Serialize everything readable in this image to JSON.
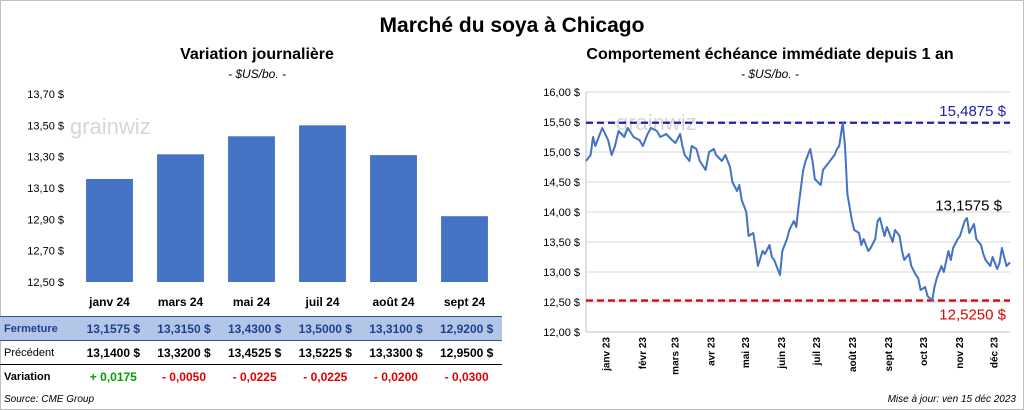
{
  "title": "Marché du soya à Chicago",
  "source": "Source: CME Group",
  "update": "Mise à jour: ven 15 déc 2023",
  "watermark": "grainwiz",
  "chart_data": [
    {
      "type": "bar",
      "title": "Variation  journalière",
      "subtitle": "- $US/bo. -",
      "categories": [
        "janv 24",
        "mars 24",
        "mai 24",
        "juil 24",
        "août 24",
        "sept 24"
      ],
      "values": [
        13.1575,
        13.315,
        13.43,
        13.5,
        13.31,
        12.92
      ],
      "ylim": [
        12.5,
        13.7
      ],
      "yticks": [
        12.5,
        12.7,
        12.9,
        13.1,
        13.3,
        13.5,
        13.7
      ],
      "ytick_labels": [
        "12,50 $",
        "12,70 $",
        "12,90 $",
        "13,10 $",
        "13,30 $",
        "13,50 $",
        "13,70 $"
      ],
      "bar_color": "#4472c4",
      "table": [
        {
          "label": "Fermeture",
          "values": [
            "13,1575  $",
            "13,3150  $",
            "13,4300  $",
            "13,5000  $",
            "13,3100  $",
            "12,9200  $"
          ]
        },
        {
          "label": "Précédent",
          "values": [
            "13,1400  $",
            "13,3200  $",
            "13,4525  $",
            "13,5225  $",
            "13,3300  $",
            "12,9500  $"
          ]
        },
        {
          "label": "Variation",
          "values": [
            "+ 0,0175",
            "- 0,0050",
            "- 0,0225",
            "- 0,0225",
            "- 0,0200",
            "- 0,0300"
          ],
          "signs": [
            "pos",
            "neg",
            "neg",
            "neg",
            "neg",
            "neg"
          ]
        }
      ]
    },
    {
      "type": "line",
      "title": "Comportement  échéance immédiate depuis 1 an",
      "subtitle": "- $US/bo. -",
      "line_color": "#4472c4",
      "ylim": [
        12.0,
        16.0
      ],
      "yticks": [
        12.0,
        12.5,
        13.0,
        13.5,
        14.0,
        14.5,
        15.0,
        15.5,
        16.0
      ],
      "ytick_labels": [
        "12,00 $",
        "12,50 $",
        "13,00 $",
        "13,50 $",
        "14,00 $",
        "14,50 $",
        "15,00 $",
        "15,50 $",
        "16,00 $"
      ],
      "xlim": [
        "2022-12-15",
        "2023-12-15"
      ],
      "xtick_labels": [
        {
          "label": "janv 23",
          "date": "2023-01-01"
        },
        {
          "label": "févr 23",
          "date": "2023-02-01"
        },
        {
          "label": "mars 23",
          "date": "2023-03-01"
        },
        {
          "label": "avr 23",
          "date": "2023-04-01"
        },
        {
          "label": "mai 23",
          "date": "2023-05-01"
        },
        {
          "label": "juin 23",
          "date": "2023-06-01"
        },
        {
          "label": "juil 23",
          "date": "2023-07-01"
        },
        {
          "label": "août 23",
          "date": "2023-08-01"
        },
        {
          "label": "sept 23",
          "date": "2023-09-01"
        },
        {
          "label": "oct 23",
          "date": "2023-10-01"
        },
        {
          "label": "nov 23",
          "date": "2023-11-01"
        },
        {
          "label": "déc 23",
          "date": "2023-12-01"
        }
      ],
      "max_line": {
        "value": 15.4875,
        "label": "15,4875 $",
        "color": "#1f1fa8"
      },
      "min_line": {
        "value": 12.525,
        "label": "12,5250 $",
        "color": "#e00000"
      },
      "last_label": "13,1575 $",
      "series": [
        {
          "points": [
            [
              "2022-12-15",
              14.85
            ],
            [
              "2022-12-19",
              14.95
            ],
            [
              "2022-12-21",
              15.25
            ],
            [
              "2022-12-23",
              15.1
            ],
            [
              "2022-12-27",
              15.3
            ],
            [
              "2022-12-29",
              15.4
            ],
            [
              "2023-01-03",
              15.2
            ],
            [
              "2023-01-06",
              14.95
            ],
            [
              "2023-01-09",
              15.1
            ],
            [
              "2023-01-12",
              15.35
            ],
            [
              "2023-01-17",
              15.25
            ],
            [
              "2023-01-20",
              15.4
            ],
            [
              "2023-01-25",
              15.25
            ],
            [
              "2023-01-30",
              15.2
            ],
            [
              "2023-02-02",
              15.1
            ],
            [
              "2023-02-06",
              15.3
            ],
            [
              "2023-02-09",
              15.4
            ],
            [
              "2023-02-14",
              15.35
            ],
            [
              "2023-02-17",
              15.25
            ],
            [
              "2023-02-22",
              15.3
            ],
            [
              "2023-02-27",
              15.2
            ],
            [
              "2023-03-02",
              15.15
            ],
            [
              "2023-03-06",
              15.3
            ],
            [
              "2023-03-08",
              15.1
            ],
            [
              "2023-03-10",
              14.95
            ],
            [
              "2023-03-14",
              14.85
            ],
            [
              "2023-03-16",
              15.1
            ],
            [
              "2023-03-20",
              15.05
            ],
            [
              "2023-03-23",
              14.85
            ],
            [
              "2023-03-28",
              14.7
            ],
            [
              "2023-03-31",
              15.0
            ],
            [
              "2023-04-04",
              15.05
            ],
            [
              "2023-04-06",
              14.95
            ],
            [
              "2023-04-11",
              14.85
            ],
            [
              "2023-04-14",
              14.95
            ],
            [
              "2023-04-18",
              14.75
            ],
            [
              "2023-04-20",
              14.5
            ],
            [
              "2023-04-24",
              14.35
            ],
            [
              "2023-04-26",
              14.45
            ],
            [
              "2023-04-28",
              14.2
            ],
            [
              "2023-05-02",
              14.0
            ],
            [
              "2023-05-04",
              13.6
            ],
            [
              "2023-05-08",
              13.65
            ],
            [
              "2023-05-10",
              13.4
            ],
            [
              "2023-05-12",
              13.1
            ],
            [
              "2023-05-16",
              13.35
            ],
            [
              "2023-05-18",
              13.3
            ],
            [
              "2023-05-22",
              13.45
            ],
            [
              "2023-05-24",
              13.25
            ],
            [
              "2023-05-26",
              13.2
            ],
            [
              "2023-05-31",
              12.95
            ],
            [
              "2023-06-02",
              13.35
            ],
            [
              "2023-06-06",
              13.55
            ],
            [
              "2023-06-08",
              13.7
            ],
            [
              "2023-06-12",
              13.85
            ],
            [
              "2023-06-14",
              13.75
            ],
            [
              "2023-06-16",
              14.1
            ],
            [
              "2023-06-20",
              14.7
            ],
            [
              "2023-06-22",
              14.85
            ],
            [
              "2023-06-26",
              15.05
            ],
            [
              "2023-06-28",
              14.85
            ],
            [
              "2023-06-30",
              14.55
            ],
            [
              "2023-07-05",
              14.45
            ],
            [
              "2023-07-07",
              14.7
            ],
            [
              "2023-07-11",
              14.8
            ],
            [
              "2023-07-13",
              14.85
            ],
            [
              "2023-07-17",
              14.95
            ],
            [
              "2023-07-19",
              15.05
            ],
            [
              "2023-07-21",
              15.1
            ],
            [
              "2023-07-24",
              15.4875
            ],
            [
              "2023-07-26",
              15.1
            ],
            [
              "2023-07-28",
              14.3
            ],
            [
              "2023-08-01",
              13.85
            ],
            [
              "2023-08-03",
              13.7
            ],
            [
              "2023-08-07",
              13.65
            ],
            [
              "2023-08-09",
              13.45
            ],
            [
              "2023-08-11",
              13.55
            ],
            [
              "2023-08-15",
              13.35
            ],
            [
              "2023-08-17",
              13.4
            ],
            [
              "2023-08-21",
              13.55
            ],
            [
              "2023-08-23",
              13.85
            ],
            [
              "2023-08-25",
              13.9
            ],
            [
              "2023-08-29",
              13.6
            ],
            [
              "2023-08-31",
              13.75
            ],
            [
              "2023-09-05",
              13.5
            ],
            [
              "2023-09-07",
              13.7
            ],
            [
              "2023-09-11",
              13.6
            ],
            [
              "2023-09-13",
              13.35
            ],
            [
              "2023-09-15",
              13.2
            ],
            [
              "2023-09-19",
              13.3
            ],
            [
              "2023-09-21",
              13.1
            ],
            [
              "2023-09-25",
              12.95
            ],
            [
              "2023-09-27",
              12.9
            ],
            [
              "2023-09-29",
              12.7
            ],
            [
              "2023-10-03",
              12.75
            ],
            [
              "2023-10-05",
              12.6
            ],
            [
              "2023-10-09",
              12.525
            ],
            [
              "2023-10-11",
              12.75
            ],
            [
              "2023-10-13",
              12.9
            ],
            [
              "2023-10-17",
              13.1
            ],
            [
              "2023-10-19",
              13.0
            ],
            [
              "2023-10-23",
              13.35
            ],
            [
              "2023-10-25",
              13.2
            ],
            [
              "2023-10-27",
              13.4
            ],
            [
              "2023-10-31",
              13.55
            ],
            [
              "2023-11-02",
              13.6
            ],
            [
              "2023-11-06",
              13.85
            ],
            [
              "2023-11-08",
              13.9
            ],
            [
              "2023-11-10",
              13.65
            ],
            [
              "2023-11-14",
              13.8
            ],
            [
              "2023-11-16",
              13.55
            ],
            [
              "2023-11-20",
              13.45
            ],
            [
              "2023-11-22",
              13.3
            ],
            [
              "2023-11-24",
              13.2
            ],
            [
              "2023-11-28",
              13.1
            ],
            [
              "2023-11-30",
              13.25
            ],
            [
              "2023-12-04",
              13.05
            ],
            [
              "2023-12-06",
              13.15
            ],
            [
              "2023-12-08",
              13.4
            ],
            [
              "2023-12-12",
              13.1
            ],
            [
              "2023-12-15",
              13.1575
            ]
          ]
        }
      ]
    }
  ]
}
